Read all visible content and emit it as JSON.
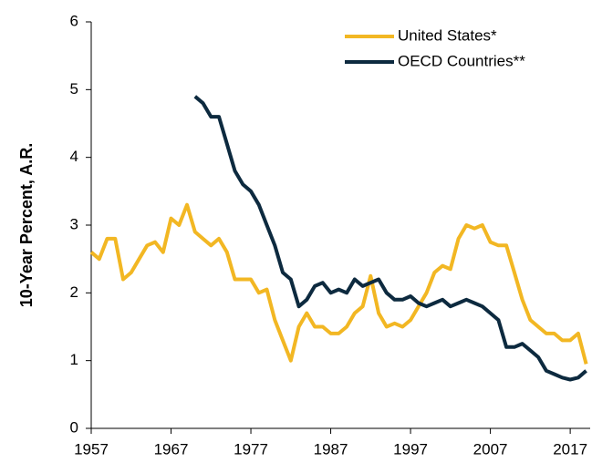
{
  "chart_data": {
    "type": "line",
    "y_label": "10-Year Percent, A.R.",
    "x": [
      1957,
      1958,
      1959,
      1960,
      1961,
      1962,
      1963,
      1964,
      1965,
      1966,
      1967,
      1968,
      1969,
      1970,
      1971,
      1972,
      1973,
      1974,
      1975,
      1976,
      1977,
      1978,
      1979,
      1980,
      1981,
      1982,
      1983,
      1984,
      1985,
      1986,
      1987,
      1988,
      1989,
      1990,
      1991,
      1992,
      1993,
      1994,
      1995,
      1996,
      1997,
      1998,
      1999,
      2000,
      2001,
      2002,
      2003,
      2004,
      2005,
      2006,
      2007,
      2008,
      2009,
      2010,
      2011,
      2012,
      2013,
      2014,
      2015,
      2016,
      2017,
      2018,
      2019
    ],
    "series": [
      {
        "name": "United States*",
        "color": "#f2b723",
        "values": [
          2.6,
          2.5,
          2.8,
          2.8,
          2.2,
          2.3,
          2.5,
          2.7,
          2.75,
          2.6,
          3.1,
          3.0,
          3.3,
          2.9,
          2.8,
          2.7,
          2.8,
          2.6,
          2.2,
          2.2,
          2.2,
          2.0,
          2.05,
          1.6,
          1.3,
          1.0,
          1.5,
          1.7,
          1.5,
          1.5,
          1.4,
          1.4,
          1.5,
          1.7,
          1.8,
          2.25,
          1.7,
          1.5,
          1.55,
          1.5,
          1.6,
          1.8,
          2.0,
          2.3,
          2.4,
          2.35,
          2.8,
          3.0,
          2.95,
          3.0,
          2.75,
          2.7,
          2.7,
          2.3,
          1.9,
          1.6,
          1.5,
          1.4,
          1.4,
          1.3,
          1.3,
          1.4,
          0.95
        ]
      },
      {
        "name": "OECD Countries**",
        "color": "#0d2a3f",
        "values": [
          null,
          null,
          null,
          null,
          null,
          null,
          null,
          null,
          null,
          null,
          null,
          null,
          null,
          4.9,
          4.8,
          4.6,
          4.6,
          4.2,
          3.8,
          3.6,
          3.5,
          3.3,
          3.0,
          2.7,
          2.3,
          2.2,
          1.8,
          1.9,
          2.1,
          2.15,
          2.0,
          2.05,
          2.0,
          2.2,
          2.1,
          2.15,
          2.2,
          2.0,
          1.9,
          1.9,
          1.95,
          1.85,
          1.8,
          1.85,
          1.9,
          1.8,
          1.85,
          1.9,
          1.85,
          1.8,
          1.7,
          1.6,
          1.2,
          1.2,
          1.25,
          1.15,
          1.05,
          0.85,
          0.8,
          0.75,
          0.72,
          0.75,
          0.85
        ]
      }
    ],
    "xlim": [
      1957,
      2019.5
    ],
    "xticks": [
      1957,
      1967,
      1977,
      1987,
      1997,
      2007,
      2017
    ],
    "ylim": [
      0,
      6
    ],
    "yticks": [
      0,
      1,
      2,
      3,
      4,
      5,
      6
    ],
    "grid": false,
    "legend": "upper right"
  }
}
